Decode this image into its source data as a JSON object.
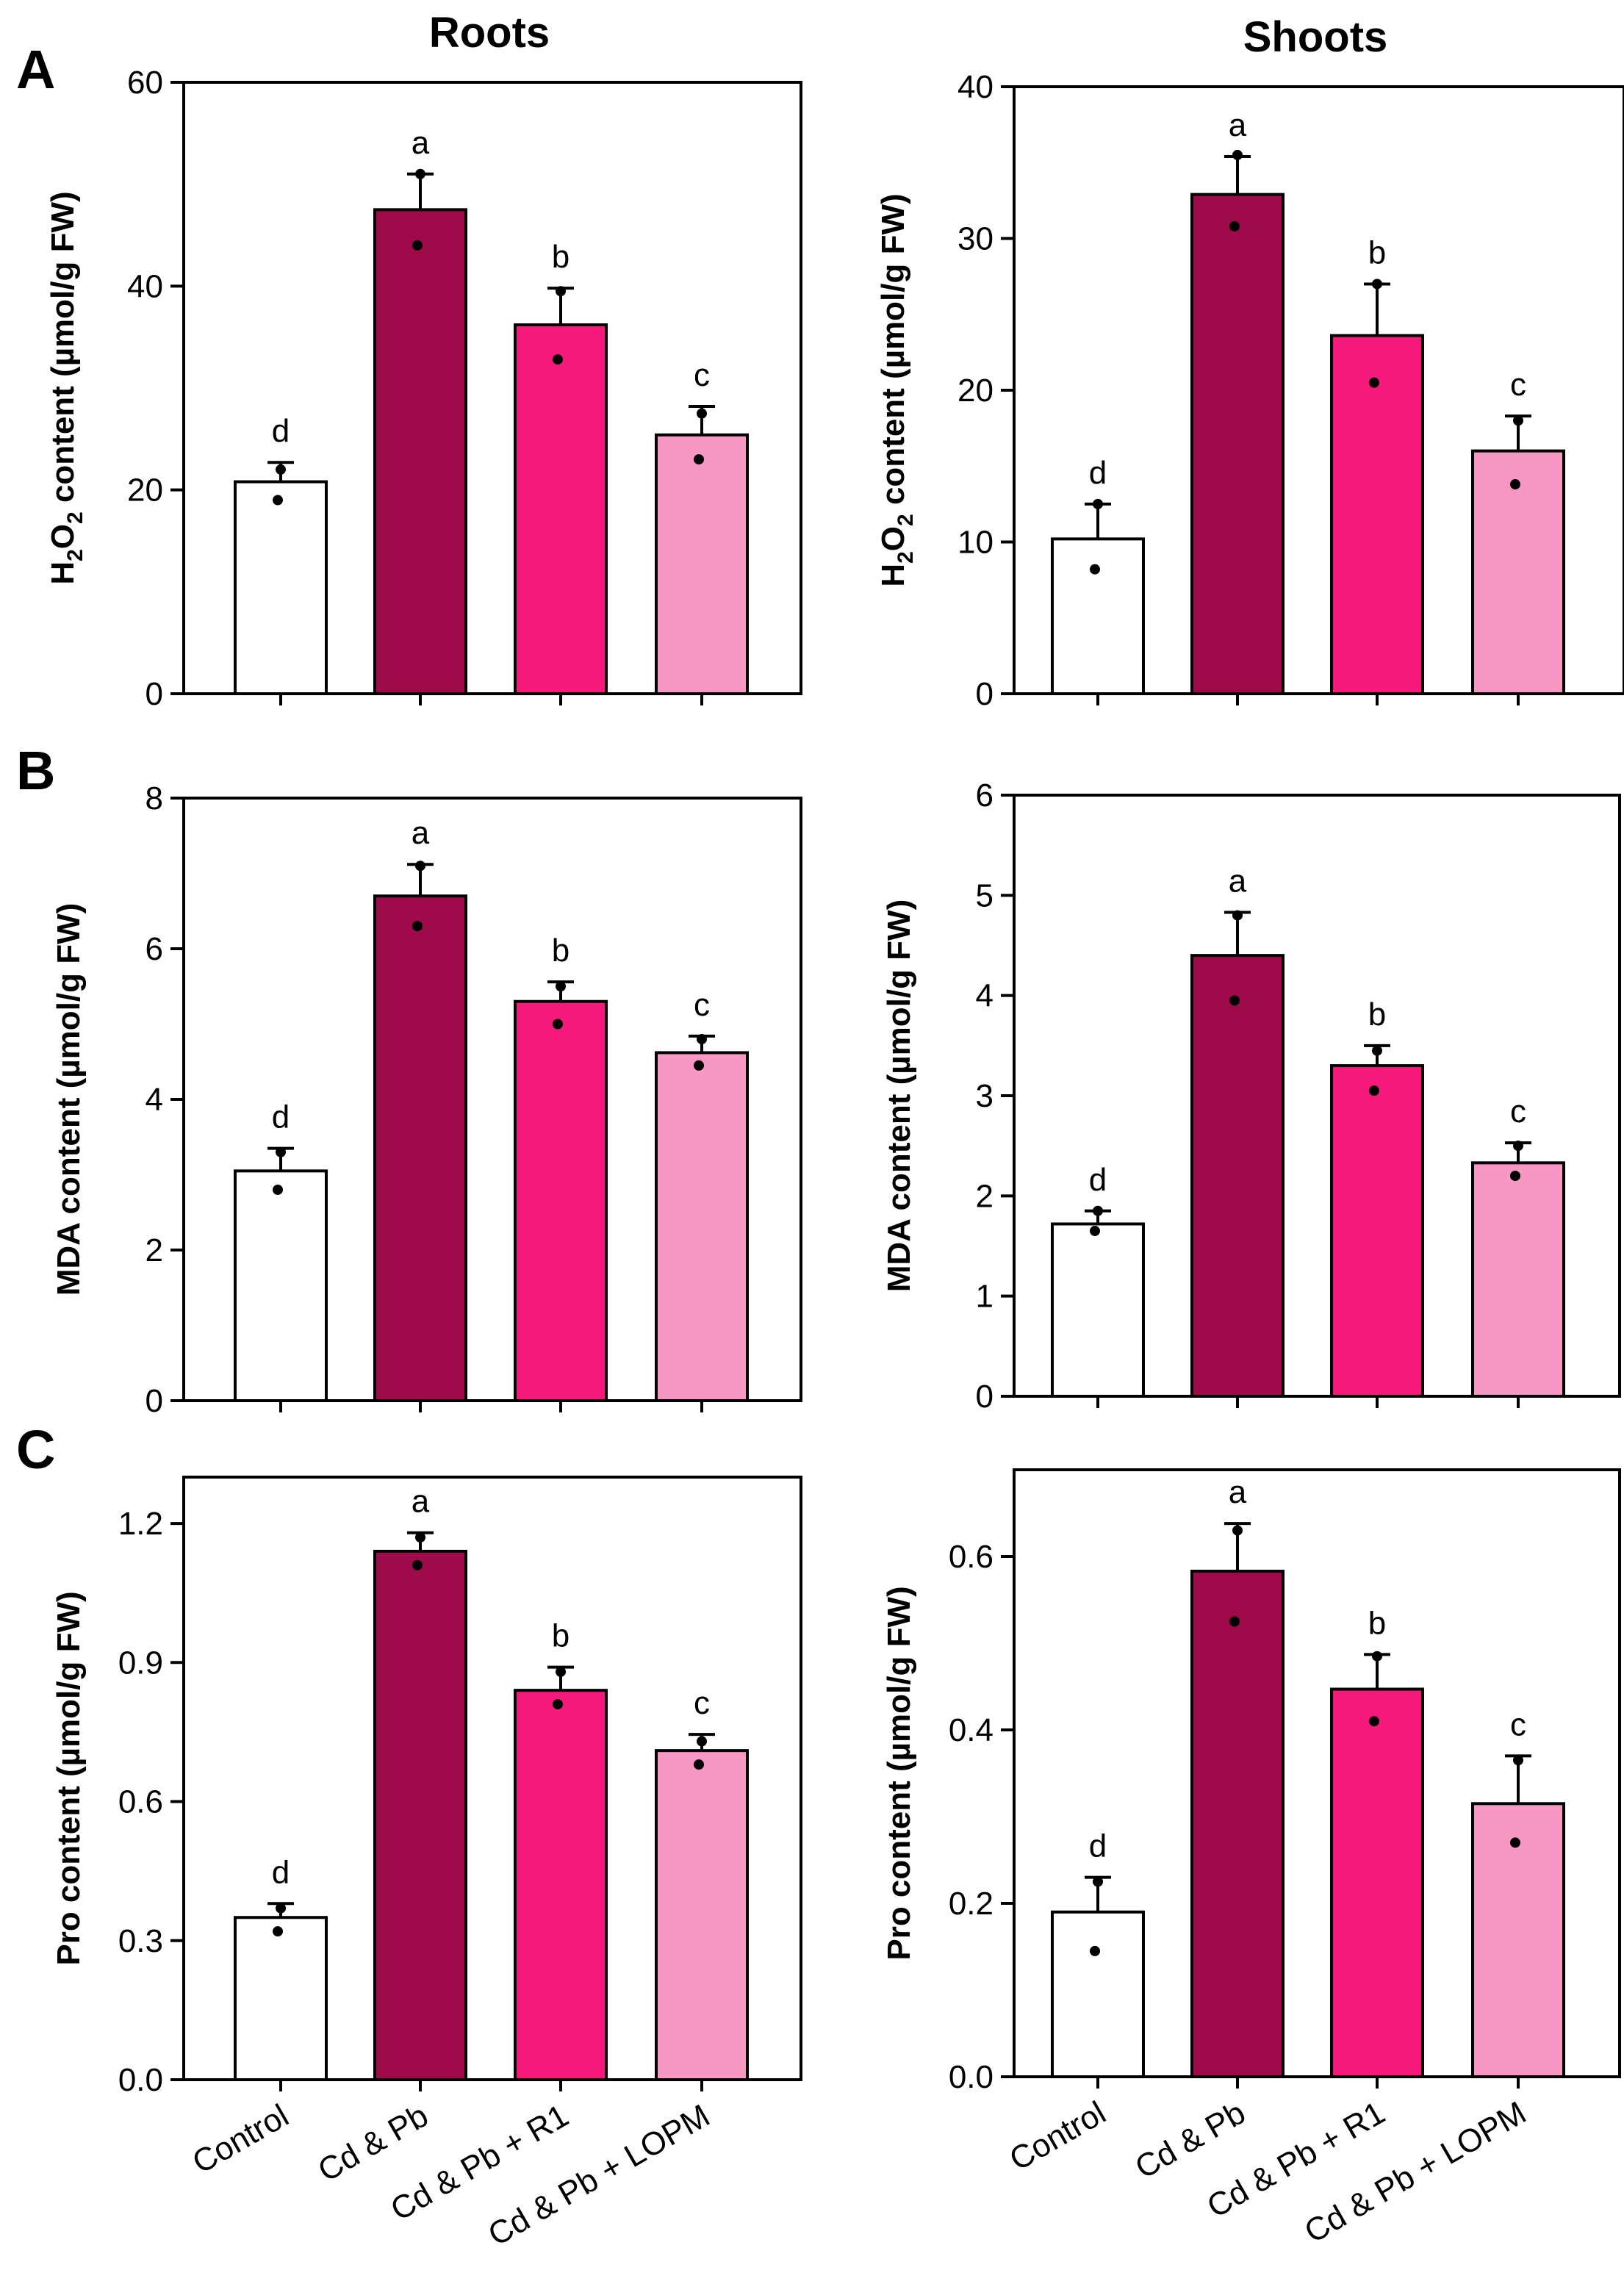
{
  "column_titles": [
    "Roots",
    "Shoots"
  ],
  "panel_letters": [
    "A",
    "B",
    "C"
  ],
  "categories": [
    "Control",
    "Cd & Pb",
    "Cd & Pb + R1",
    "Cd & Pb + LOPM"
  ],
  "bar_colors": [
    "#ffffff",
    "#9e0a4a",
    "#f5197b",
    "#f797c3"
  ],
  "chart_data": [
    {
      "type": "bar",
      "panel": "A",
      "column": "Roots",
      "ylabel": "H2O2 content (µmol/g FW)",
      "ylabel_parts": [
        "H",
        "2",
        "O",
        "2",
        " content (µmol/g FW)"
      ],
      "ylim": [
        0,
        60
      ],
      "yticks": [
        0,
        20,
        40,
        60
      ],
      "ytick_labels": [
        "0",
        "20",
        "40",
        "60"
      ],
      "categories": [
        "Control",
        "Cd & Pb",
        "Cd & Pb + R1",
        "Cd & Pb + LOPM"
      ],
      "values": [
        20.8,
        47.5,
        36.2,
        25.4
      ],
      "errors": [
        1.9,
        3.5,
        3.6,
        2.8
      ],
      "points": [
        [
          22.0,
          19.0
        ],
        [
          51.0,
          44.0
        ],
        [
          39.5,
          32.8
        ],
        [
          27.5,
          23.0
        ]
      ],
      "letters": [
        "d",
        "a",
        "b",
        "c"
      ]
    },
    {
      "type": "bar",
      "panel": "A",
      "column": "Shoots",
      "ylabel": "H2O2 content (µmol/g FW)",
      "ylabel_parts": [
        "H",
        "2",
        "O",
        "2",
        " content (µmol/g FW)"
      ],
      "ylim": [
        0,
        40
      ],
      "yticks": [
        0,
        10,
        20,
        30,
        40
      ],
      "ytick_labels": [
        "0",
        "10",
        "20",
        "30",
        "40"
      ],
      "categories": [
        "Control",
        "Cd & Pb",
        "Cd & Pb + R1",
        "Cd & Pb + LOPM"
      ],
      "values": [
        10.2,
        32.9,
        23.6,
        16.0
      ],
      "errors": [
        2.3,
        2.5,
        3.4,
        2.3
      ],
      "points": [
        [
          12.5,
          8.2
        ],
        [
          35.5,
          30.8
        ],
        [
          27.0,
          20.5
        ],
        [
          18.0,
          13.8
        ]
      ],
      "letters": [
        "d",
        "a",
        "b",
        "c"
      ]
    },
    {
      "type": "bar",
      "panel": "B",
      "column": "Roots",
      "ylabel": "MDA content (µmol/g FW)",
      "ylim": [
        0,
        8
      ],
      "yticks": [
        0,
        2,
        4,
        6,
        8
      ],
      "ytick_labels": [
        "0",
        "2",
        "4",
        "6",
        "8"
      ],
      "categories": [
        "Control",
        "Cd & Pb",
        "Cd & Pb + R1",
        "Cd & Pb + LOPM"
      ],
      "values": [
        3.05,
        6.7,
        5.3,
        4.62
      ],
      "errors": [
        0.3,
        0.42,
        0.26,
        0.22
      ],
      "points": [
        [
          3.3,
          2.8
        ],
        [
          7.1,
          6.3
        ],
        [
          5.5,
          5.0
        ],
        [
          4.8,
          4.45
        ]
      ],
      "letters": [
        "d",
        "a",
        "b",
        "c"
      ]
    },
    {
      "type": "bar",
      "panel": "B",
      "column": "Shoots",
      "ylabel": "MDA content (µmol/g FW)",
      "ylim": [
        0,
        6
      ],
      "yticks": [
        0,
        1,
        2,
        3,
        4,
        5,
        6
      ],
      "ytick_labels": [
        "0",
        "1",
        "2",
        "3",
        "4",
        "5",
        "6"
      ],
      "categories": [
        "Control",
        "Cd & Pb",
        "Cd & Pb + R1",
        "Cd & Pb + LOPM"
      ],
      "values": [
        1.72,
        4.4,
        3.3,
        2.33
      ],
      "errors": [
        0.13,
        0.43,
        0.2,
        0.2
      ],
      "points": [
        [
          1.85,
          1.65
        ],
        [
          4.8,
          3.95
        ],
        [
          3.45,
          3.05
        ],
        [
          2.5,
          2.2
        ]
      ],
      "letters": [
        "d",
        "a",
        "b",
        "c"
      ]
    },
    {
      "type": "bar",
      "panel": "C",
      "column": "Roots",
      "ylabel": "Pro content (µmol/g FW)",
      "ylim": [
        0,
        1.3
      ],
      "yticks": [
        0,
        0.3,
        0.6,
        0.9,
        1.2
      ],
      "ytick_labels": [
        "0.0",
        "0.3",
        "0.6",
        "0.9",
        "1.2"
      ],
      "categories": [
        "Control",
        "Cd & Pb",
        "Cd & Pb + R1",
        "Cd & Pb + LOPM"
      ],
      "values": [
        0.35,
        1.14,
        0.84,
        0.71
      ],
      "errors": [
        0.03,
        0.04,
        0.05,
        0.035
      ],
      "points": [
        [
          0.37,
          0.32
        ],
        [
          1.17,
          1.11
        ],
        [
          0.88,
          0.81
        ],
        [
          0.73,
          0.68
        ]
      ],
      "letters": [
        "d",
        "a",
        "b",
        "c"
      ]
    },
    {
      "type": "bar",
      "panel": "C",
      "column": "Shoots",
      "ylabel": "Pro content (µmol/g FW)",
      "ylim": [
        0,
        0.7
      ],
      "yticks": [
        0,
        0.2,
        0.4,
        0.6
      ],
      "ytick_labels": [
        "0.0",
        "0.2",
        "0.4",
        "0.6"
      ],
      "categories": [
        "Control",
        "Cd & Pb",
        "Cd & Pb + R1",
        "Cd & Pb + LOPM"
      ],
      "values": [
        0.19,
        0.583,
        0.447,
        0.315
      ],
      "errors": [
        0.04,
        0.055,
        0.04,
        0.055
      ],
      "points": [
        [
          0.225,
          0.145
        ],
        [
          0.63,
          0.525
        ],
        [
          0.485,
          0.41
        ],
        [
          0.365,
          0.27
        ]
      ],
      "letters": [
        "d",
        "a",
        "b",
        "c"
      ]
    }
  ]
}
